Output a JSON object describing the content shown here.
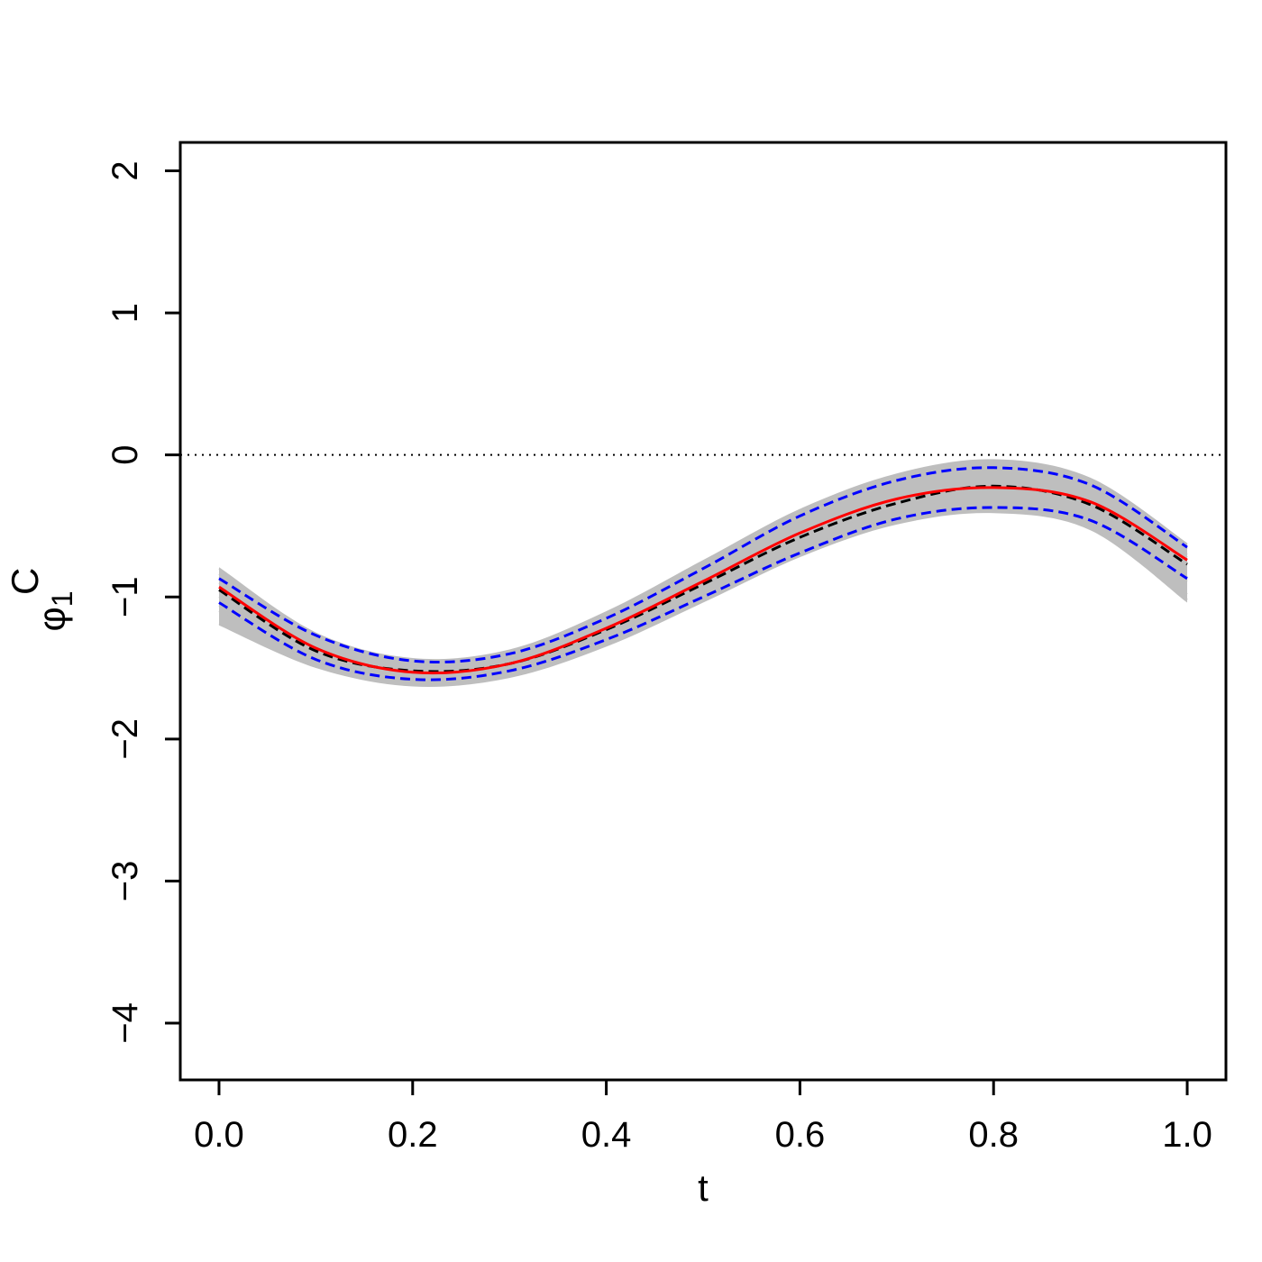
{
  "chart_data": {
    "type": "line",
    "title": "",
    "xlabel": "t",
    "ylabel": {
      "base": "φ",
      "superscript": "C",
      "subscript": "1"
    },
    "xlim": [
      -0.04,
      1.04
    ],
    "ylim": [
      -4.4,
      2.2
    ],
    "xticks": [
      0.0,
      0.2,
      0.4,
      0.6,
      0.8,
      1.0
    ],
    "xtick_labels": [
      "0.0",
      "0.2",
      "0.4",
      "0.6",
      "0.8",
      "1.0"
    ],
    "yticks": [
      -4,
      -3,
      -2,
      -1,
      0,
      1,
      2
    ],
    "ytick_labels": [
      "−4",
      "−3",
      "−2",
      "−1",
      "0",
      "1",
      "2"
    ],
    "grid": false,
    "legend": "none",
    "reference_line": {
      "y": 0,
      "style": "dotted",
      "color": "#000000"
    },
    "x": [
      0.0,
      0.1,
      0.2,
      0.3,
      0.4,
      0.5,
      0.6,
      0.7,
      0.8,
      0.9,
      1.0
    ],
    "series": [
      {
        "color": "#ff0000",
        "style": "solid",
        "values": [
          -0.93,
          -1.36,
          -1.53,
          -1.47,
          -1.22,
          -0.89,
          -0.55,
          -0.31,
          -0.23,
          -0.33,
          -0.74
        ]
      },
      {
        "color": "#000000",
        "style": "dashed",
        "values": [
          -0.95,
          -1.38,
          -1.52,
          -1.47,
          -1.23,
          -0.91,
          -0.58,
          -0.34,
          -0.22,
          -0.35,
          -0.77
        ]
      },
      {
        "color": "#0000ff",
        "style": "dashed",
        "values": [
          -0.87,
          -1.27,
          -1.45,
          -1.4,
          -1.15,
          -0.8,
          -0.43,
          -0.18,
          -0.09,
          -0.21,
          -0.65
        ]
      },
      {
        "color": "#0000ff",
        "style": "dashed",
        "values": [
          -1.04,
          -1.44,
          -1.58,
          -1.52,
          -1.3,
          -1.0,
          -0.69,
          -0.45,
          -0.37,
          -0.46,
          -0.87
        ]
      }
    ],
    "band": {
      "color": "#bebebe",
      "upper": [
        -0.79,
        -1.25,
        -1.43,
        -1.37,
        -1.1,
        -0.74,
        -0.38,
        -0.13,
        -0.03,
        -0.16,
        -0.62
      ],
      "lower": [
        -1.2,
        -1.5,
        -1.63,
        -1.57,
        -1.35,
        -1.04,
        -0.72,
        -0.49,
        -0.41,
        -0.53,
        -1.04
      ]
    },
    "gray_curves": [
      [
        -0.8,
        -1.26,
        -1.44,
        -1.38,
        -1.12,
        -0.77,
        -0.41,
        -0.17,
        -0.06,
        -0.17,
        -0.63
      ],
      [
        -0.86,
        -1.3,
        -1.47,
        -1.42,
        -1.16,
        -0.82,
        -0.46,
        -0.22,
        -0.12,
        -0.23,
        -0.7
      ],
      [
        -1.0,
        -1.42,
        -1.57,
        -1.5,
        -1.27,
        -0.95,
        -0.62,
        -0.39,
        -0.3,
        -0.42,
        -0.86
      ],
      [
        -1.19,
        -1.49,
        -1.61,
        -1.55,
        -1.33,
        -1.03,
        -0.7,
        -0.47,
        -0.4,
        -0.5,
        -0.98
      ],
      [
        -1.1,
        -1.46,
        -1.56,
        -1.46,
        -1.21,
        -0.86,
        -0.52,
        -0.31,
        -0.24,
        -0.41,
        -1.02
      ],
      [
        -0.9,
        -1.33,
        -1.5,
        -1.45,
        -1.2,
        -0.87,
        -0.53,
        -0.29,
        -0.19,
        -0.3,
        -0.72
      ],
      [
        -1.06,
        -1.45,
        -1.58,
        -1.52,
        -1.29,
        -0.98,
        -0.66,
        -0.43,
        -0.34,
        -0.45,
        -0.89
      ],
      [
        -0.84,
        -1.28,
        -1.46,
        -1.41,
        -1.14,
        -0.79,
        -0.43,
        -0.19,
        -0.08,
        -0.19,
        -0.66
      ]
    ]
  }
}
